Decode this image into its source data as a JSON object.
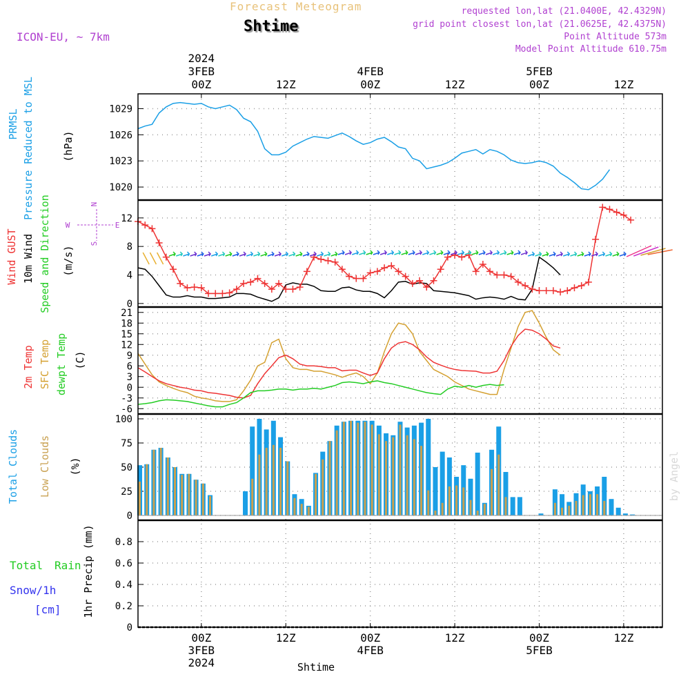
{
  "header": {
    "title": "Forecast Meteogram",
    "station": "Shtime",
    "model": "ICON-EU, ~ 7km",
    "requested": "requested lon,lat (21.0400E, 42.4329N)",
    "gridpoint": "grid point closest lon,lat (21.0625E, 42.4375N)",
    "altitude": "Point Altitude 573m",
    "model_altitude": "Model Point Altitude 610.75m",
    "footer_station": "Shtime",
    "watermark": "by Angel"
  },
  "colors": {
    "pressure": "#1a9fe6",
    "gust": "#ee3333",
    "wind": "#000000",
    "t2m": "#ee3333",
    "sfc": "#d4a030",
    "dewpt": "#22cc22",
    "total_cloud": "#1a9fe6",
    "low_cloud": "#c8a050",
    "title": "#e8c27a",
    "info": "#b040d0",
    "rain": "#22cc22",
    "snow": "#3333ee"
  },
  "top_axis": {
    "times": [
      "00Z",
      "12Z",
      "00Z",
      "12Z",
      "00Z",
      "12Z"
    ],
    "dates": [
      "3FEB",
      "4FEB",
      "5FEB"
    ],
    "year": "2024"
  },
  "bottom_axis": {
    "times": [
      "00Z",
      "12Z",
      "00Z",
      "12Z",
      "00Z",
      "12Z"
    ],
    "dates": [
      "3FEB",
      "4FEB",
      "5FEB"
    ],
    "year": "2024"
  },
  "panel_labels": {
    "pressure": [
      "PRMSL",
      "Pressure Reduced to MSL",
      "(hPa)"
    ],
    "wind": [
      "Wind GUST",
      "10m Wind",
      "Speed and Direction",
      "(m/s)"
    ],
    "compass": {
      "n": "N",
      "s": "S",
      "w": "W",
      "e": "E"
    },
    "temp": [
      "2m Temp",
      "SFC Temp",
      "dewpt Temp",
      "(C)"
    ],
    "clouds": [
      "Total Clouds",
      "Low Clouds",
      "(%)"
    ],
    "precip": {
      "total": "Total",
      "rain": "Rain",
      "snow": "Snow/1h",
      "cm": "[cm]",
      "unit": "1hr Precip (mm)"
    }
  },
  "chart_data": [
    {
      "type": "line",
      "name": "pressure",
      "ylabel": "(hPa)",
      "ylim": [
        1018.5,
        1030.7
      ],
      "yticks": [
        1020,
        1023,
        1026,
        1029
      ],
      "x_hours": [
        -9,
        -8,
        -7,
        -6,
        -5,
        -4,
        -3,
        -2,
        -1,
        0,
        1,
        2,
        3,
        4,
        5,
        6,
        7,
        8,
        9,
        10,
        11,
        12,
        13,
        14,
        15,
        16,
        17,
        18,
        19,
        20,
        21,
        22,
        23,
        24,
        25,
        26,
        27,
        28,
        29,
        30,
        31,
        32,
        33,
        34,
        35,
        36,
        37,
        38,
        39,
        40,
        41,
        42,
        43,
        44,
        45,
        46,
        47,
        48,
        49,
        50,
        51,
        52,
        53,
        54,
        55,
        56,
        57,
        58,
        59,
        60,
        61,
        62,
        63,
        64,
        65
      ],
      "series": [
        {
          "values": [
            1026.7,
            1027.0,
            1027.2,
            1028.5,
            1029.2,
            1029.6,
            1029.7,
            1029.6,
            1029.5,
            1029.6,
            1029.2,
            1029.0,
            1029.2,
            1029.4,
            1028.9,
            1027.9,
            1027.5,
            1026.4,
            1024.4,
            1023.7,
            1023.7,
            1024.0,
            1024.7,
            1025.1,
            1025.5,
            1025.8,
            1025.7,
            1025.6,
            1025.9,
            1026.2,
            1025.8,
            1025.3,
            1024.9,
            1025.1,
            1025.5,
            1025.7,
            1025.2,
            1024.6,
            1024.4,
            1023.3,
            1023.0,
            1022.1,
            1022.3,
            1022.5,
            1022.8,
            1023.3,
            1023.9,
            1024.1,
            1024.3,
            1023.8,
            1024.3,
            1024.1,
            1023.7,
            1023.1,
            1022.8,
            1022.7,
            1022.8,
            1023.0,
            1022.8,
            1022.4,
            1021.6,
            1021.1,
            1020.5,
            1019.8,
            1019.7,
            1020.2,
            1020.9,
            1022.0
          ]
        }
      ]
    },
    {
      "type": "line",
      "name": "wind",
      "ylabel": "(m/s)",
      "ylim": [
        -0.5,
        14.5
      ],
      "yticks": [
        0,
        4,
        8,
        12
      ],
      "x_hours": [
        -9,
        -8,
        -7,
        -6,
        -5,
        -4,
        -3,
        -2,
        -1,
        0,
        1,
        2,
        3,
        4,
        5,
        6,
        7,
        8,
        9,
        10,
        11,
        12,
        13,
        14,
        15,
        16,
        17,
        18,
        19,
        20,
        21,
        22,
        23,
        24,
        25,
        26,
        27,
        28,
        29,
        30,
        31,
        32,
        33,
        34,
        35,
        36,
        37,
        38,
        39,
        40,
        41,
        42,
        43,
        44,
        45,
        46,
        47,
        48,
        49,
        50,
        51,
        52,
        53,
        54,
        55,
        56,
        57,
        58,
        59,
        60,
        61,
        62,
        63,
        64,
        65
      ],
      "series": [
        {
          "name": "Wind GUST",
          "values": [
            11.5,
            11.0,
            10.5,
            8.5,
            6.5,
            4.8,
            2.8,
            2.2,
            2.3,
            2.2,
            1.4,
            1.4,
            1.4,
            1.5,
            2.0,
            2.8,
            3.0,
            3.5,
            2.8,
            2.0,
            2.8,
            2.0,
            2.0,
            2.3,
            4.5,
            6.5,
            6.2,
            6.0,
            5.8,
            4.8,
            3.8,
            3.5,
            3.5,
            4.3,
            4.5,
            5.0,
            5.3,
            4.5,
            3.8,
            2.8,
            3.2,
            2.3,
            3.2,
            4.8,
            6.5,
            6.8,
            6.5,
            6.8,
            4.5,
            5.5,
            4.5,
            4.0,
            4.0,
            3.8,
            3.0,
            2.5,
            2.0,
            1.8,
            1.8,
            1.8,
            1.6,
            1.8,
            2.2,
            2.5,
            3.0,
            9.0,
            13.5,
            13.2,
            12.8,
            12.4,
            11.7
          ]
        },
        {
          "name": "10m Wind",
          "values": [
            5.0,
            4.8,
            3.8,
            2.5,
            1.2,
            0.9,
            0.9,
            1.1,
            0.9,
            0.9,
            0.7,
            0.7,
            0.8,
            0.9,
            1.4,
            1.4,
            1.3,
            0.9,
            0.6,
            0.3,
            0.8,
            2.6,
            2.9,
            2.7,
            2.7,
            2.4,
            1.8,
            1.7,
            1.7,
            2.2,
            2.3,
            1.9,
            1.7,
            1.7,
            1.4,
            0.8,
            1.8,
            3.0,
            3.1,
            2.7,
            2.9,
            2.8,
            1.8,
            1.7,
            1.6,
            1.5,
            1.3,
            1.1,
            0.6,
            0.8,
            0.9,
            0.8,
            0.6,
            1.0,
            0.6,
            0.5,
            2.0,
            6.5,
            5.8,
            5.0,
            4.0
          ]
        }
      ]
    },
    {
      "type": "line",
      "name": "temperature",
      "ylabel": "(C)",
      "ylim": [
        -7.5,
        22.5
      ],
      "yticks": [
        -6,
        -3,
        0,
        3,
        6,
        9,
        12,
        15,
        18,
        21
      ],
      "x_hours": [
        -9,
        -8,
        -7,
        -6,
        -5,
        -4,
        -3,
        -2,
        -1,
        0,
        1,
        2,
        3,
        4,
        5,
        6,
        7,
        8,
        9,
        10,
        11,
        12,
        13,
        14,
        15,
        16,
        17,
        18,
        19,
        20,
        21,
        22,
        23,
        24,
        25,
        26,
        27,
        28,
        29,
        30,
        31,
        32,
        33,
        34,
        35,
        36,
        37,
        38,
        39,
        40,
        41,
        42,
        43,
        44,
        45,
        46,
        47,
        48,
        49,
        50,
        51,
        52,
        53,
        54,
        55,
        56,
        57,
        58,
        59,
        60,
        61,
        62,
        63,
        64,
        65
      ],
      "series": [
        {
          "name": "2m Temp",
          "values": [
            5.5,
            4.3,
            3.0,
            1.8,
            1.0,
            0.5,
            0.0,
            -0.3,
            -0.8,
            -1.0,
            -1.5,
            -1.7,
            -2.0,
            -2.3,
            -2.8,
            -3.0,
            -2.3,
            1.0,
            3.8,
            6.0,
            8.3,
            9.0,
            8.0,
            6.5,
            6.0,
            6.0,
            5.8,
            5.5,
            5.5,
            4.6,
            4.8,
            4.8,
            4.0,
            3.3,
            4.0,
            8.0,
            11.0,
            12.4,
            12.8,
            12.0,
            10.5,
            8.5,
            7.0,
            6.2,
            5.5,
            5.0,
            4.7,
            4.6,
            4.5,
            4.0,
            4.0,
            4.5,
            7.5,
            11.5,
            14.5,
            16.3,
            16.0,
            15.0,
            13.5,
            11.6,
            11.0
          ]
        },
        {
          "name": "SFC Temp",
          "values": [
            9.5,
            6.5,
            3.5,
            1.5,
            0.5,
            -0.3,
            -1.0,
            -1.5,
            -2.5,
            -3.0,
            -3.3,
            -3.8,
            -4.0,
            -4.0,
            -3.5,
            -1.0,
            2.0,
            6.0,
            7.0,
            12.5,
            13.5,
            8.0,
            5.5,
            5.0,
            5.0,
            4.5,
            4.5,
            4.0,
            3.5,
            2.8,
            3.5,
            4.0,
            3.0,
            1.0,
            4.0,
            10.0,
            15.0,
            18.0,
            17.5,
            15.0,
            10.0,
            7.5,
            5.0,
            4.0,
            3.0,
            1.5,
            0.5,
            -0.5,
            -1.0,
            -1.5,
            -2.0,
            -2.0,
            5.0,
            11.0,
            17.0,
            21.0,
            21.5,
            18.0,
            14.0,
            10.5,
            9.0
          ]
        },
        {
          "name": "dewpt Temp",
          "values": [
            -4.8,
            -4.6,
            -4.3,
            -3.8,
            -3.5,
            -3.6,
            -3.8,
            -4.0,
            -4.4,
            -4.8,
            -5.2,
            -5.5,
            -5.5,
            -4.8,
            -4.3,
            -3.0,
            -1.5,
            -1.0,
            -1.0,
            -0.8,
            -0.5,
            -0.5,
            -0.8,
            -0.5,
            -0.5,
            -0.3,
            -0.5,
            0.0,
            0.5,
            1.3,
            1.5,
            1.3,
            1.0,
            1.5,
            1.8,
            1.3,
            1.0,
            0.5,
            0.0,
            -0.5,
            -1.0,
            -1.5,
            -1.8,
            -2.0,
            -0.5,
            0.3,
            0.0,
            0.5,
            0.0,
            0.5,
            0.8,
            0.5,
            0.7
          ]
        }
      ]
    },
    {
      "type": "bar",
      "name": "clouds",
      "ylabel": "(%)",
      "ylim": [
        -5,
        105
      ],
      "yticks": [
        0,
        25,
        50,
        75,
        100
      ],
      "x_hours": [
        -9,
        -8,
        -7,
        -6,
        -5,
        -4,
        -3,
        -2,
        -1,
        0,
        1,
        2,
        3,
        4,
        5,
        6,
        7,
        8,
        9,
        10,
        11,
        12,
        13,
        14,
        15,
        16,
        17,
        18,
        19,
        20,
        21,
        22,
        23,
        24,
        25,
        26,
        27,
        28,
        29,
        30,
        31,
        32,
        33,
        34,
        35,
        36,
        37,
        38,
        39,
        40,
        41,
        42,
        43,
        44,
        45,
        46,
        47,
        48,
        49,
        50,
        51,
        52,
        53,
        54,
        55,
        56,
        57,
        58,
        59,
        60,
        61,
        62,
        63,
        64
      ],
      "series": [
        {
          "name": "Total Clouds",
          "values": [
            52,
            53,
            68,
            70,
            60,
            50,
            43,
            43,
            37,
            33,
            21,
            0,
            0,
            0,
            0,
            25,
            92,
            100,
            89,
            98,
            81,
            56,
            22,
            17,
            10,
            44,
            66,
            77,
            93,
            97,
            98,
            98,
            98,
            98,
            93,
            85,
            83,
            97,
            91,
            93,
            96,
            100,
            50,
            66,
            60,
            40,
            52,
            38,
            65,
            13,
            68,
            92,
            45,
            19,
            19,
            0,
            0,
            2,
            0,
            27,
            22,
            14,
            23,
            32,
            25,
            30,
            40,
            17,
            8,
            2,
            1,
            0,
            0,
            0
          ]
        },
        {
          "name": "Low Clouds",
          "values": [
            35,
            53,
            68,
            70,
            60,
            50,
            42,
            43,
            37,
            33,
            20,
            0,
            0,
            0,
            0,
            0,
            38,
            63,
            70,
            73,
            70,
            56,
            18,
            12,
            9,
            43,
            58,
            77,
            88,
            97,
            98,
            96,
            97,
            94,
            84,
            77,
            81,
            94,
            83,
            79,
            72,
            26,
            5,
            13,
            30,
            31,
            29,
            16,
            5,
            12,
            48,
            63,
            19,
            0,
            0,
            0,
            0,
            0,
            0,
            13,
            8,
            10,
            15,
            21,
            22,
            22,
            15,
            0,
            0,
            0,
            0,
            0,
            0,
            0
          ]
        }
      ]
    },
    {
      "type": "bar",
      "name": "precip",
      "ylabel": "1hr Precip (mm)",
      "ylim": [
        0,
        1.0
      ],
      "yticks": [
        0,
        0.2,
        0.4,
        0.6,
        0.8
      ],
      "series": [
        {
          "name": "Total Rain",
          "values": []
        },
        {
          "name": "Snow/1h",
          "values": []
        }
      ]
    }
  ]
}
